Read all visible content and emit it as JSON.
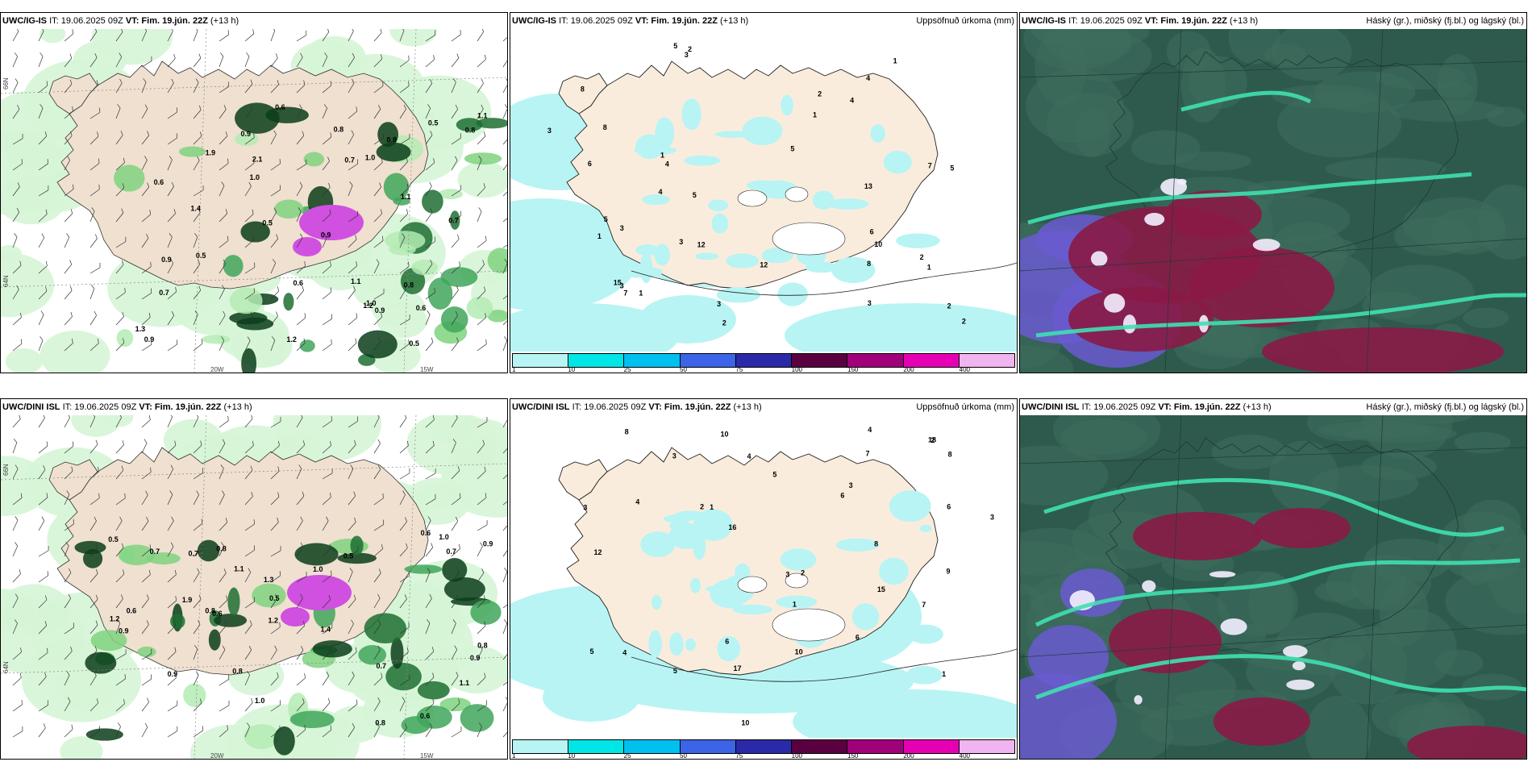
{
  "panels": [
    {
      "model": "UWC/IG-IS",
      "issue": "IT: 19.06.2025 09Z",
      "valid": "VT: Fim. 19.jún. 22Z",
      "lead": "(+13 h)",
      "subtitle": "",
      "type": "wind-precip"
    },
    {
      "model": "UWC/IG-IS",
      "issue": "IT: 19.06.2025 09Z",
      "valid": "VT: Fim. 19.jún. 22Z",
      "lead": "(+13 h)",
      "subtitle": "Uppsöfnuð úrkoma (mm)",
      "type": "accum"
    },
    {
      "model": "UWC/IG-IS",
      "issue": "IT: 19.06.2025 09Z",
      "valid": "VT: Fim. 19.jún. 22Z",
      "lead": "(+13 h)",
      "subtitle": "Háský (gr.), miðský (fj.bl.) og lágský (bl.)",
      "type": "cloud"
    },
    {
      "model": "UWC/DINI ISL",
      "issue": "IT: 19.06.2025 09Z",
      "valid": "VT: Fim. 19.jún. 22Z",
      "lead": "(+13 h)",
      "subtitle": "",
      "type": "wind-precip"
    },
    {
      "model": "UWC/DINI ISL",
      "issue": "IT: 19.06.2025 09Z",
      "valid": "VT: Fim. 19.jún. 22Z",
      "lead": "(+13 h)",
      "subtitle": "Uppsöfnuð úrkoma (mm)",
      "type": "accum"
    },
    {
      "model": "UWC/DINI ISL",
      "issue": "IT: 19.06.2025 09Z",
      "valid": "VT: Fim. 19.jún. 22Z",
      "lead": "(+13 h)",
      "subtitle": "Háský (gr.), miðský (fj.bl.) og lágský (bl.)",
      "type": "cloud"
    }
  ],
  "colorbar": {
    "colors": [
      "#b8f4f4",
      "#00e6e6",
      "#00c0f0",
      "#3c64e6",
      "#2a2aa8",
      "#5a0040",
      "#a0007a",
      "#e600b4",
      "#f0b4f0"
    ],
    "labels": [
      "1",
      "10",
      "25",
      "50",
      "75",
      "100",
      "150",
      "200",
      "400"
    ]
  },
  "grid_labels": {
    "lon": [
      "20W",
      "15W"
    ],
    "lat": [
      "66N",
      "64N"
    ]
  },
  "accum_values_top": [
    "1",
    "2",
    "3",
    "1",
    "5",
    "6",
    "4",
    "5",
    "2",
    "13",
    "8",
    "3",
    "2",
    "1",
    "4",
    "3",
    "2",
    "1",
    "5",
    "2",
    "3",
    "4",
    "3",
    "1",
    "12",
    "8",
    "10",
    "5",
    "7",
    "3",
    "6",
    "4",
    "1",
    "2",
    "3",
    "5",
    "8",
    "7",
    "12",
    "15"
  ],
  "accum_values_bottom": [
    "2",
    "1",
    "4",
    "10",
    "6",
    "18",
    "15",
    "3",
    "5",
    "4",
    "8",
    "6",
    "3",
    "2",
    "1",
    "12",
    "7",
    "9",
    "3",
    "4",
    "5",
    "6",
    "8",
    "10",
    "2",
    "1",
    "3",
    "17",
    "16",
    "4",
    "3",
    "5",
    "6",
    "7",
    "8",
    "10"
  ],
  "precip_values_top": [
    "0.5",
    "0.8",
    "0.9",
    "1.0",
    "1.1",
    "0.6",
    "0.7",
    "0.9",
    "1.2",
    "0.5",
    "0.8",
    "1.3",
    "0.6",
    "0.9",
    "2.1",
    "1.9",
    "1.1",
    "0.8",
    "0.7",
    "0.6",
    "1.0",
    "0.9",
    "0.5",
    "1.2",
    "1.4",
    "0.7",
    "0.8",
    "0.5",
    "0.9",
    "0.6",
    "1.1",
    "1.0"
  ],
  "precip_values_bottom": [
    "0.9",
    "1.0",
    "0.7",
    "0.6",
    "0.8",
    "0.5",
    "1.2",
    "0.9",
    "1.1",
    "0.8",
    "0.6",
    "0.7",
    "1.4",
    "0.5",
    "1.3",
    "0.9",
    "0.8",
    "1.1",
    "0.7",
    "0.6",
    "0.8",
    "0.5",
    "0.9",
    "1.0",
    "1.2",
    "0.7",
    "0.6",
    "0.8",
    "1.9",
    "1.0"
  ]
}
